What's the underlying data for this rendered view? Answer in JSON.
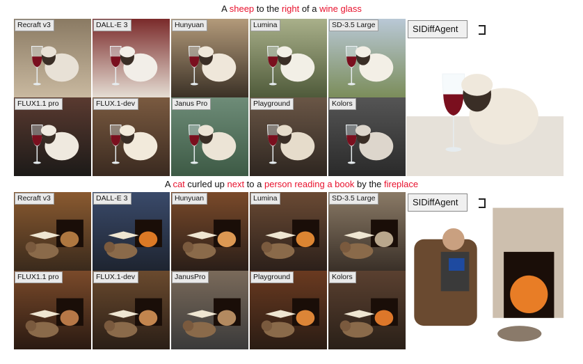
{
  "prompts": [
    {
      "segments": [
        {
          "text": "A ",
          "highlight": false
        },
        {
          "text": "sheep",
          "highlight": true
        },
        {
          "text": " to the ",
          "highlight": false
        },
        {
          "text": "right",
          "highlight": true
        },
        {
          "text": " of a ",
          "highlight": false
        },
        {
          "text": "wine glass",
          "highlight": true
        }
      ],
      "grid_labels": [
        "Recraft v3",
        "DALL-E 3",
        "Hunyuan",
        "Lumina",
        "SD-3.5 Large",
        "FLUX1.1 pro",
        "FLUX.1-dev",
        "Janus Pro",
        "Playground",
        "Kolors"
      ],
      "featured_label": "SIDiffAgent",
      "subject": "sheep"
    },
    {
      "segments": [
        {
          "text": "A ",
          "highlight": false
        },
        {
          "text": "cat",
          "highlight": true
        },
        {
          "text": " curled up ",
          "highlight": false
        },
        {
          "text": "next",
          "highlight": true
        },
        {
          "text": " to a ",
          "highlight": false
        },
        {
          "text": "person reading a book",
          "highlight": true
        },
        {
          "text": " by the ",
          "highlight": false
        },
        {
          "text": "fireplace",
          "highlight": true
        }
      ],
      "grid_labels": [
        "Recraft v3",
        "DALL-E 3",
        "Hunyuan",
        "Lumina",
        "SD-3.5 Large",
        "FLUX1.1 pro",
        "FLUX.1-dev",
        "JanusPro",
        "Playground",
        "Kolors"
      ],
      "featured_label": "SIDiffAgent",
      "subject": "cat"
    }
  ],
  "colors": {
    "highlight": "#e8112d",
    "label_bg": "#e9e9e9"
  }
}
